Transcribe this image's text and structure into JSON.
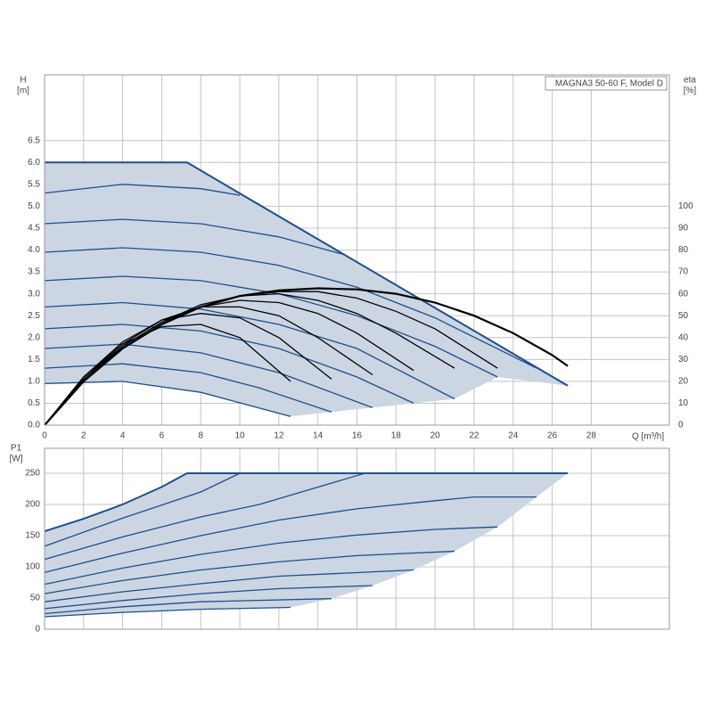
{
  "chart_data": [
    {
      "type": "line",
      "title": "MAGNA3 50-60 F, Model D",
      "xlabel": "Q [m³/h]",
      "ylabel": "H",
      "yunit": "[m]",
      "y2label": "eta",
      "y2unit": "[%]",
      "xlim": [
        0,
        32
      ],
      "xticks": [
        0,
        2,
        4,
        6,
        8,
        10,
        12,
        14,
        16,
        18,
        20,
        22,
        24,
        26,
        28
      ],
      "ylim": [
        0,
        8
      ],
      "yticks": [
        {
          "value": 0,
          "label": "0.0"
        },
        0.5,
        {
          "value": 1,
          "label": "1.0"
        },
        1.5,
        {
          "value": 2,
          "label": "2.0"
        },
        2.5,
        {
          "value": 3,
          "label": "3.0"
        },
        3.5,
        {
          "value": 4,
          "label": "4.0"
        },
        4.5,
        {
          "value": 5,
          "label": "5.0"
        },
        5.5,
        {
          "value": 6,
          "label": "6.0"
        },
        6.5
      ],
      "y2lim": [
        0,
        160
      ],
      "y2ticks": [
        0,
        10,
        20,
        30,
        40,
        50,
        60,
        70,
        80,
        90,
        100
      ],
      "grid": true,
      "fill_color": "#cbd6e2",
      "series": [
        {
          "role": "max",
          "color": "#1f4e8c",
          "x": [
            0,
            7.3,
            26.8
          ],
          "values": [
            6.0,
            6.0,
            0.9
          ]
        },
        {
          "role": "min",
          "color": "#1f4e8c",
          "x": [
            0,
            4,
            8,
            12.6
          ],
          "values": [
            0.95,
            1.0,
            0.75,
            0.2
          ]
        },
        {
          "role": "speed",
          "color": "#1f4e8c",
          "x": [
            0,
            4,
            8,
            11,
            14.7
          ],
          "values": [
            1.3,
            1.4,
            1.2,
            0.85,
            0.3
          ]
        },
        {
          "role": "speed",
          "color": "#1f4e8c",
          "x": [
            0,
            4,
            8,
            12,
            16.8
          ],
          "values": [
            1.75,
            1.85,
            1.65,
            1.2,
            0.4
          ]
        },
        {
          "role": "speed",
          "color": "#1f4e8c",
          "x": [
            0,
            4,
            8,
            12,
            16,
            18.9
          ],
          "values": [
            2.2,
            2.3,
            2.15,
            1.75,
            1.1,
            0.5
          ]
        },
        {
          "role": "speed",
          "color": "#1f4e8c",
          "x": [
            0,
            4,
            8,
            12,
            16,
            21
          ],
          "values": [
            2.7,
            2.8,
            2.65,
            2.3,
            1.75,
            0.6
          ]
        },
        {
          "role": "speed",
          "color": "#1f4e8c",
          "x": [
            0,
            4,
            8,
            12,
            16,
            20,
            23.2
          ],
          "values": [
            3.3,
            3.4,
            3.3,
            3.0,
            2.5,
            1.8,
            1.1
          ]
        },
        {
          "role": "speed",
          "color": "#1f4e8c",
          "x": [
            0,
            4,
            8,
            12,
            16,
            20,
            25.2
          ],
          "values": [
            3.95,
            4.05,
            3.95,
            3.65,
            3.15,
            2.45,
            1.3
          ]
        },
        {
          "role": "speed",
          "color": "#1f4e8c",
          "x": [
            0,
            4,
            8,
            12,
            15.3
          ],
          "values": [
            4.6,
            4.7,
            4.6,
            4.3,
            3.9
          ]
        },
        {
          "role": "speed",
          "color": "#1f4e8c",
          "x": [
            0,
            4,
            8,
            10
          ],
          "values": [
            5.3,
            5.5,
            5.4,
            5.25
          ]
        },
        {
          "role": "eta",
          "axis": "y2",
          "color": "#000000",
          "x": [
            0,
            2,
            4,
            6,
            8,
            10,
            12.6
          ],
          "values": [
            0,
            22,
            37,
            45,
            46,
            40,
            20
          ]
        },
        {
          "role": "eta",
          "axis": "y2",
          "color": "#000000",
          "x": [
            0,
            2,
            4,
            6,
            8,
            10,
            12,
            14.7
          ],
          "values": [
            0,
            22,
            38,
            48,
            51,
            49,
            40,
            21
          ]
        },
        {
          "role": "eta",
          "axis": "y2",
          "color": "#000000",
          "x": [
            0,
            2,
            4,
            6,
            8,
            10,
            12,
            14,
            16.8
          ],
          "values": [
            0,
            21,
            37,
            48,
            54,
            54,
            50,
            40,
            23
          ]
        },
        {
          "role": "eta",
          "axis": "y2",
          "color": "#000000",
          "x": [
            0,
            2,
            4,
            6,
            8,
            10,
            12,
            14,
            16,
            18.9
          ],
          "values": [
            0,
            21,
            36,
            47,
            54,
            57,
            56,
            51,
            42,
            25
          ]
        },
        {
          "role": "eta",
          "axis": "y2",
          "color": "#000000",
          "x": [
            0,
            2,
            4,
            6,
            8,
            10,
            12,
            14,
            16,
            18,
            21
          ],
          "values": [
            0,
            20,
            36,
            47,
            55,
            59,
            60,
            57,
            51,
            42,
            26
          ]
        },
        {
          "role": "eta",
          "axis": "y2",
          "color": "#000000",
          "x": [
            0,
            2,
            4,
            6,
            8,
            10,
            12,
            14,
            16,
            18,
            20,
            23.2
          ],
          "values": [
            0,
            20,
            35,
            46,
            54,
            59,
            61,
            61,
            58,
            52,
            44,
            26
          ]
        },
        {
          "role": "eta",
          "axis": "y2",
          "color": "#000000",
          "x": [
            0,
            2,
            4,
            6,
            8,
            10,
            12,
            14,
            16,
            18,
            20,
            22,
            24,
            26,
            26.8
          ],
          "values": [
            0,
            20,
            35,
            46,
            54,
            59,
            61.5,
            62.5,
            62,
            60,
            56,
            50,
            42,
            32,
            27
          ]
        }
      ]
    },
    {
      "type": "line",
      "ylabel": "P1",
      "yunit": "[W]",
      "xlim": [
        0,
        32
      ],
      "ylim": [
        0,
        290
      ],
      "yticks": [
        0,
        50,
        100,
        150,
        200,
        250
      ],
      "grid": true,
      "fill_color": "#cbd6e2",
      "series": [
        {
          "role": "max",
          "color": "#1f4e8c",
          "x": [
            0,
            2,
            4,
            6,
            7.3,
            26.8
          ],
          "values": [
            157,
            177,
            200,
            228,
            250,
            250
          ]
        },
        {
          "role": "min",
          "color": "#1f4e8c",
          "x": [
            0,
            4,
            8,
            12.6
          ],
          "values": [
            20,
            27,
            32,
            35
          ]
        },
        {
          "role": "speed",
          "color": "#1f4e8c",
          "x": [
            0,
            4,
            8,
            14.7
          ],
          "values": [
            25,
            36,
            44,
            49
          ]
        },
        {
          "role": "speed",
          "color": "#1f4e8c",
          "x": [
            0,
            4,
            8,
            12,
            16.8
          ],
          "values": [
            33,
            46,
            57,
            65,
            70
          ]
        },
        {
          "role": "speed",
          "color": "#1f4e8c",
          "x": [
            0,
            4,
            8,
            12,
            18.9
          ],
          "values": [
            44,
            60,
            73,
            85,
            95
          ]
        },
        {
          "role": "speed",
          "color": "#1f4e8c",
          "x": [
            0,
            4,
            8,
            12,
            16,
            21
          ],
          "values": [
            57,
            78,
            95,
            108,
            118,
            125
          ]
        },
        {
          "role": "speed",
          "color": "#1f4e8c",
          "x": [
            0,
            4,
            8,
            12,
            16,
            20,
            23.2
          ],
          "values": [
            72,
            98,
            120,
            138,
            151,
            160,
            164
          ]
        },
        {
          "role": "speed",
          "color": "#1f4e8c",
          "x": [
            0,
            4,
            8,
            12,
            16,
            20,
            22,
            25.2
          ],
          "values": [
            91,
            122,
            150,
            175,
            193,
            206,
            212,
            212
          ]
        },
        {
          "role": "speed",
          "color": "#1f4e8c",
          "x": [
            0,
            4,
            8,
            11,
            16.4
          ],
          "values": [
            112,
            148,
            180,
            200,
            250
          ]
        },
        {
          "role": "speed",
          "color": "#1f4e8c",
          "x": [
            0,
            4,
            8,
            10
          ],
          "values": [
            133,
            178,
            220,
            250
          ]
        }
      ]
    }
  ]
}
